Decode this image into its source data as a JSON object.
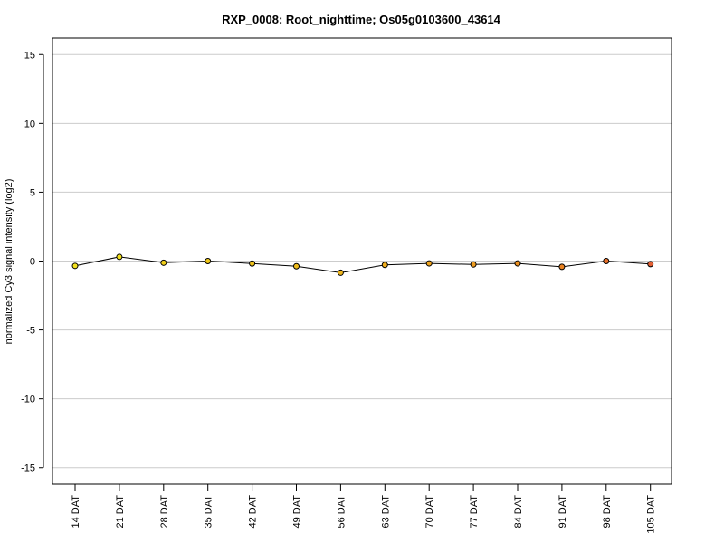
{
  "chart_data": {
    "type": "line",
    "title": "RXP_0008: Root_nighttime; Os05g0103600_43614",
    "xlabel": "",
    "ylabel": "normalized Cy3 signal intensity (log2)",
    "categories": [
      "14 DAT",
      "21 DAT",
      "28 DAT",
      "35 DAT",
      "42 DAT",
      "49 DAT",
      "56 DAT",
      "63 DAT",
      "70 DAT",
      "77 DAT",
      "84 DAT",
      "91 DAT",
      "98 DAT",
      "105 DAT"
    ],
    "values": [
      -0.35,
      0.3,
      -0.12,
      0.0,
      -0.18,
      -0.38,
      -0.85,
      -0.28,
      -0.17,
      -0.25,
      -0.17,
      -0.42,
      0.0,
      -0.22
    ],
    "point_colors": [
      "#f2e01e",
      "#f3e21c",
      "#f0cf1a",
      "#f0c81a",
      "#efc21a",
      "#efbc1a",
      "#efb61c",
      "#efad1c",
      "#eea41e",
      "#ee9c20",
      "#ec9020",
      "#eb8322",
      "#e8702a",
      "#e46034"
    ],
    "yticks": [
      -15,
      -10,
      -5,
      0,
      5,
      10,
      15
    ],
    "ytick_labels": [
      "-15",
      "-10",
      "-5",
      "0",
      "5",
      "10",
      "15"
    ],
    "ylim": [
      -16.2,
      16.2
    ],
    "grid": "horizontal",
    "grid_color": "#cccccc",
    "line_color": "#000000"
  }
}
